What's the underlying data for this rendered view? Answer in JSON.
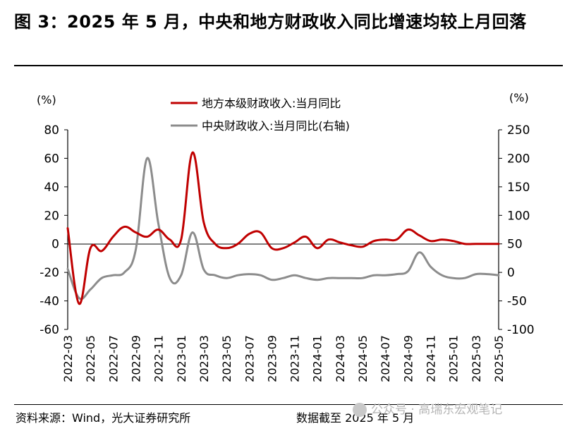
{
  "title": "图 3：2025 年 5 月，中央和地方财政收入同比增速均较上月回落",
  "footer": {
    "source": "资料来源：Wind，光大证券研究所",
    "as_of": "数据截至 2025 年 5 月",
    "watermark": "公众号 · 高瑞东宏观笔记"
  },
  "chart_data": {
    "type": "line",
    "left_unit": "(%)",
    "right_unit": "(%)",
    "left_ylim": [
      -60,
      80
    ],
    "left_ticks": [
      "80",
      "60",
      "40",
      "20",
      "0",
      "-20",
      "-40",
      "-60"
    ],
    "right_ylim": [
      -100,
      250
    ],
    "right_ticks": [
      "250",
      "200",
      "150",
      "100",
      "50",
      "0",
      "-50",
      "-100"
    ],
    "x_tick_labels": [
      "2022-03",
      "2022-05",
      "2022-07",
      "2022-09",
      "2022-11",
      "2023-01",
      "2023-03",
      "2023-05",
      "2023-07",
      "2023-09",
      "2023-11",
      "2024-01",
      "2024-03",
      "2024-05",
      "2024-07",
      "2024-09",
      "2024-11",
      "2025-01",
      "2025-03",
      "2025-05"
    ],
    "x": [
      "2022-03",
      "2022-04",
      "2022-05",
      "2022-06",
      "2022-07",
      "2022-08",
      "2022-09",
      "2022-10",
      "2022-11",
      "2022-12",
      "2023-01",
      "2023-02",
      "2023-03",
      "2023-04",
      "2023-05",
      "2023-06",
      "2023-07",
      "2023-08",
      "2023-09",
      "2023-10",
      "2023-11",
      "2023-12",
      "2024-01",
      "2024-02",
      "2024-03",
      "2024-04",
      "2024-05",
      "2024-06",
      "2024-07",
      "2024-08",
      "2024-09",
      "2024-10",
      "2024-11",
      "2024-12",
      "2025-01",
      "2025-02",
      "2025-03",
      "2025-04",
      "2025-05"
    ],
    "series": [
      {
        "name": "地方本级财政收入:当月同比",
        "axis": "left",
        "color": "#c00000",
        "values": [
          11,
          -42,
          -3,
          -5,
          5,
          12,
          8,
          5,
          10,
          3,
          3,
          64,
          15,
          0,
          -3,
          0,
          7,
          8,
          -3,
          -3,
          1,
          5,
          -3,
          3,
          1,
          -1,
          -2,
          2,
          3,
          3,
          10,
          6,
          2,
          3,
          2,
          0,
          0,
          0,
          0
        ]
      },
      {
        "name": "中央财政收入:当月同比(右轴)",
        "axis": "right",
        "color": "#8c8c8c",
        "values": [
          6,
          -45,
          -30,
          -10,
          -5,
          0,
          40,
          200,
          85,
          -10,
          -5,
          70,
          5,
          -5,
          -10,
          -5,
          -3,
          -5,
          -13,
          -10,
          -5,
          -10,
          -13,
          -10,
          -10,
          -10,
          -10,
          -5,
          -5,
          -3,
          2,
          35,
          10,
          -5,
          -10,
          -10,
          -3,
          -3,
          -5
        ]
      }
    ]
  }
}
